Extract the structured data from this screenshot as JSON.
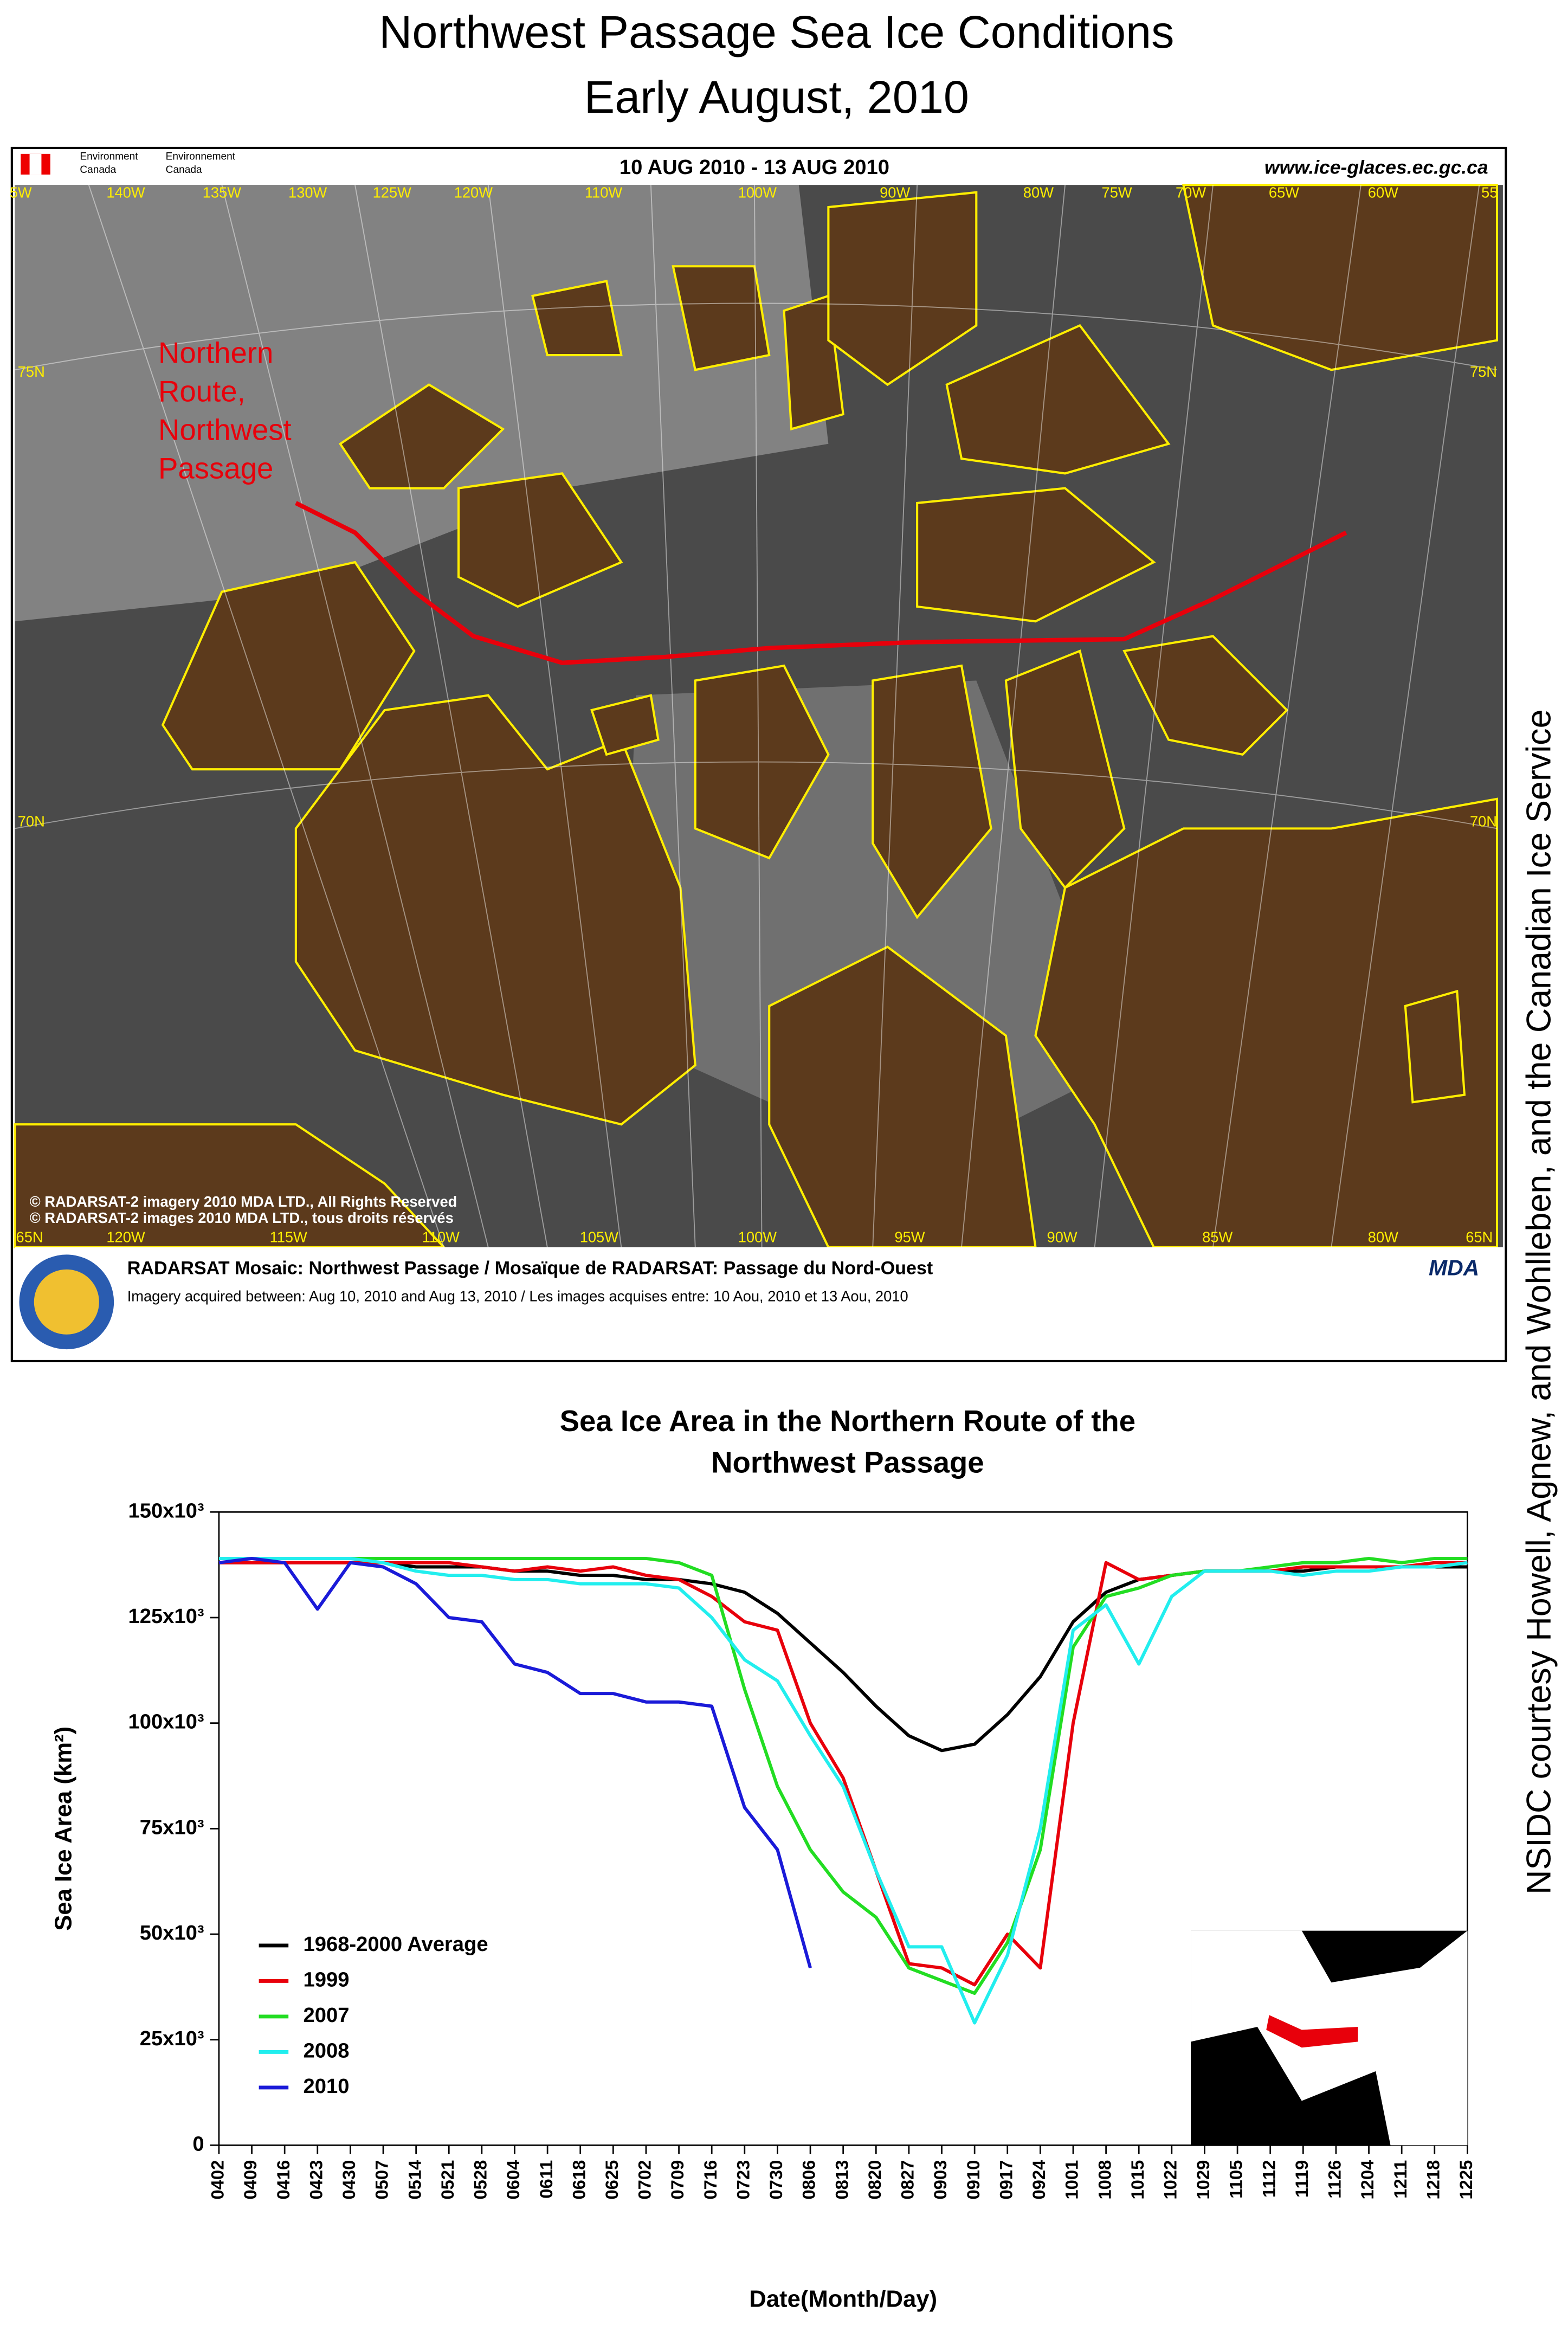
{
  "title": [
    "Northwest Passage Sea Ice Conditions",
    "Early August, 2010"
  ],
  "credit": "NSIDC courtesy Howell, Agnew, and Wohlleben, and the Canadian Ice Service",
  "map": {
    "agency": [
      "Environment",
      "Canada",
      "Environnement",
      "Canada"
    ],
    "date_range": "10 AUG 2010 - 13 AUG 2010",
    "url": "www.ice-glaces.ec.gc.ca",
    "longitude_top": [
      "5W",
      "140W",
      "135W",
      "130W",
      "125W",
      "120W",
      "110W",
      "100W",
      "90W",
      "80W",
      "75W",
      "70W",
      "65W",
      "60W",
      "55"
    ],
    "longitude_bottom": [
      "65N",
      "120W",
      "115W",
      "110W",
      "105W",
      "100W",
      "95W",
      "90W",
      "85W",
      "80W",
      "65N"
    ],
    "latitude_left": [
      "75N",
      "70N"
    ],
    "latitude_right": [
      "75N",
      "70N"
    ],
    "route_label": [
      "Northern",
      "Route,",
      "Northwest",
      "Passage"
    ],
    "copyright": [
      "© RADARSAT-2 imagery 2010 MDA LTD., All Rights Reserved",
      "© RADARSAT-2 images 2010 MDA LTD., tous droits réservés"
    ],
    "footer_title": "RADARSAT Mosaic: Northwest Passage / Mosaïque de RADARSAT: Passage du Nord-Ouest",
    "footer_subtitle": "Imagery acquired between: Aug 10, 2010 and Aug 13, 2010 / Les images acquises entre: 10 Aou, 2010 et 13 Aou, 2010",
    "logo": "MDA"
  },
  "chart_data": {
    "type": "line",
    "title": [
      "Sea Ice Area in the Northern Route of the",
      "Northwest Passage"
    ],
    "x_label": "Date(Month/Day)",
    "y_label": "Sea Ice Area (km²)",
    "categories": [
      "0402",
      "0409",
      "0416",
      "0423",
      "0430",
      "0507",
      "0514",
      "0521",
      "0528",
      "0604",
      "0611",
      "0618",
      "0625",
      "0702",
      "0709",
      "0716",
      "0723",
      "0730",
      "0806",
      "0813",
      "0820",
      "0827",
      "0903",
      "0910",
      "0917",
      "0924",
      "1001",
      "1008",
      "1015",
      "1022",
      "1029",
      "1105",
      "1112",
      "1119",
      "1126",
      "1204",
      "1211",
      "1218",
      "1225"
    ],
    "ylim": [
      0,
      150000
    ],
    "yticks": [
      0,
      {
        "value": 25000,
        "label": "25x10³"
      },
      {
        "value": 50000,
        "label": "50x10³"
      },
      {
        "value": 75000,
        "label": "75x10³"
      },
      {
        "value": 100000,
        "label": "100x10³"
      },
      {
        "value": 125000,
        "label": "125x10³"
      },
      {
        "value": 150000,
        "label": "150x10³"
      }
    ],
    "legend": "lower left",
    "series": [
      {
        "name": "1968-2000 Average",
        "color": "#000000",
        "values": [
          138000,
          138000,
          138000,
          138000,
          138000,
          138000,
          137000,
          137000,
          137000,
          136000,
          136000,
          135000,
          135000,
          134000,
          134000,
          133000,
          131000,
          126000,
          119000,
          112000,
          104000,
          97000,
          93500,
          95000,
          102000,
          111000,
          124000,
          131000,
          134000,
          135000,
          136000,
          136000,
          136000,
          136000,
          137000,
          137000,
          137000,
          137000,
          137000
        ]
      },
      {
        "name": "1999",
        "color": "#e8000b",
        "values": [
          138000,
          138000,
          138000,
          138000,
          138000,
          138000,
          138000,
          138000,
          137000,
          136000,
          137000,
          136000,
          137000,
          135000,
          134000,
          130000,
          124000,
          122000,
          100000,
          87000,
          65000,
          43000,
          42000,
          38000,
          50000,
          42000,
          100000,
          138000,
          134000,
          135000,
          136000,
          136000,
          136000,
          137000,
          137000,
          137000,
          137000,
          138000,
          138000
        ]
      },
      {
        "name": "2007",
        "color": "#22dd22",
        "values": [
          139000,
          139000,
          139000,
          139000,
          139000,
          139000,
          139000,
          139000,
          139000,
          139000,
          139000,
          139000,
          139000,
          139000,
          138000,
          135000,
          108000,
          85000,
          70000,
          60000,
          54000,
          42000,
          39000,
          36000,
          48000,
          70000,
          118000,
          130000,
          132000,
          135000,
          136000,
          136000,
          137000,
          138000,
          138000,
          139000,
          138000,
          139000,
          139000
        ]
      },
      {
        "name": "2008",
        "color": "#22eeee",
        "values": [
          139000,
          139000,
          139000,
          139000,
          139000,
          138000,
          136000,
          135000,
          135000,
          134000,
          134000,
          133000,
          133000,
          133000,
          132000,
          125000,
          115000,
          110000,
          97000,
          85000,
          65000,
          47000,
          47000,
          29000,
          45000,
          75000,
          122000,
          128000,
          114000,
          130000,
          136000,
          136000,
          136000,
          135000,
          136000,
          136000,
          137000,
          137000,
          138000
        ]
      },
      {
        "name": "2010",
        "color": "#1a1ad8",
        "values": [
          138000,
          139000,
          138000,
          127000,
          138000,
          137000,
          133000,
          125000,
          124000,
          114000,
          112000,
          107000,
          107000,
          105000,
          105000,
          104000,
          80000,
          70000,
          42000,
          null,
          null,
          null,
          null,
          null,
          null,
          null,
          null,
          null,
          null,
          null,
          null,
          null,
          null,
          null,
          null,
          null,
          null,
          null,
          null
        ]
      }
    ]
  }
}
